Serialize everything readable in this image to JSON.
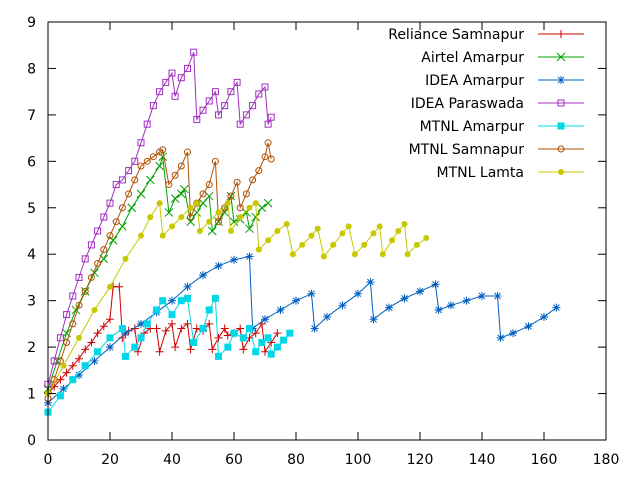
{
  "chart_data": {
    "type": "line",
    "xlim": [
      0,
      180
    ],
    "ylim": [
      0,
      9
    ],
    "x_ticks": [
      "0",
      "20",
      "40",
      "60",
      "80",
      "100",
      "120",
      "140",
      "160",
      "180"
    ],
    "y_ticks": [
      "0",
      "1",
      "2",
      "3",
      "4",
      "5",
      "6",
      "7",
      "8",
      "9"
    ],
    "grid": false,
    "legend_position": "top-right",
    "series": [
      {
        "name": "Reliance Samnapur",
        "color": "#d00000",
        "marker": "plus",
        "points": [
          [
            0,
            1.0
          ],
          [
            2,
            1.15
          ],
          [
            4,
            1.3
          ],
          [
            6,
            1.45
          ],
          [
            8,
            1.6
          ],
          [
            10,
            1.75
          ],
          [
            12,
            1.95
          ],
          [
            14,
            2.1
          ],
          [
            16,
            2.3
          ],
          [
            18,
            2.45
          ],
          [
            20,
            2.6
          ],
          [
            21,
            3.3
          ],
          [
            23,
            3.3
          ],
          [
            24,
            2.2
          ],
          [
            26,
            2.35
          ],
          [
            28,
            2.4
          ],
          [
            29,
            1.9
          ],
          [
            31,
            2.3
          ],
          [
            33,
            2.4
          ],
          [
            35,
            2.4
          ],
          [
            36,
            1.9
          ],
          [
            38,
            2.35
          ],
          [
            40,
            2.5
          ],
          [
            41,
            2.0
          ],
          [
            43,
            2.4
          ],
          [
            45,
            2.5
          ],
          [
            46,
            1.95
          ],
          [
            48,
            2.4
          ],
          [
            50,
            2.35
          ],
          [
            52,
            2.5
          ],
          [
            53,
            1.95
          ],
          [
            55,
            2.2
          ],
          [
            57,
            2.4
          ],
          [
            58,
            2.25
          ],
          [
            60,
            2.3
          ],
          [
            62,
            2.4
          ],
          [
            63,
            1.95
          ],
          [
            65,
            2.2
          ],
          [
            67,
            2.3
          ],
          [
            69,
            2.5
          ],
          [
            70,
            1.9
          ],
          [
            72,
            2.1
          ],
          [
            74,
            2.3
          ]
        ]
      },
      {
        "name": "Airtel Amarpur",
        "color": "#00a000",
        "marker": "cross",
        "points": [
          [
            0,
            1.1
          ],
          [
            3,
            1.7
          ],
          [
            6,
            2.3
          ],
          [
            9,
            2.8
          ],
          [
            12,
            3.2
          ],
          [
            15,
            3.6
          ],
          [
            18,
            3.9
          ],
          [
            21,
            4.3
          ],
          [
            24,
            4.6
          ],
          [
            27,
            5.0
          ],
          [
            30,
            5.3
          ],
          [
            33,
            5.6
          ],
          [
            36,
            5.9
          ],
          [
            37,
            6.1
          ],
          [
            39,
            4.9
          ],
          [
            41,
            5.2
          ],
          [
            43,
            5.3
          ],
          [
            44,
            5.4
          ],
          [
            46,
            4.7
          ],
          [
            48,
            4.9
          ],
          [
            50,
            5.1
          ],
          [
            52,
            5.25
          ],
          [
            53,
            4.5
          ],
          [
            55,
            4.7
          ],
          [
            57,
            4.9
          ],
          [
            59,
            5.25
          ],
          [
            60,
            4.7
          ],
          [
            62,
            4.75
          ],
          [
            64,
            4.9
          ],
          [
            65,
            4.55
          ],
          [
            67,
            4.8
          ],
          [
            69,
            5.0
          ],
          [
            71,
            5.1
          ]
        ]
      },
      {
        "name": "IDEA Amarpur",
        "color": "#0060c0",
        "marker": "star",
        "points": [
          [
            0,
            0.8
          ],
          [
            5,
            1.1
          ],
          [
            10,
            1.4
          ],
          [
            15,
            1.7
          ],
          [
            20,
            2.0
          ],
          [
            25,
            2.3
          ],
          [
            30,
            2.5
          ],
          [
            35,
            2.75
          ],
          [
            40,
            3.0
          ],
          [
            45,
            3.3
          ],
          [
            50,
            3.55
          ],
          [
            55,
            3.75
          ],
          [
            60,
            3.88
          ],
          [
            65,
            3.95
          ],
          [
            66,
            2.4
          ],
          [
            70,
            2.6
          ],
          [
            75,
            2.8
          ],
          [
            80,
            3.0
          ],
          [
            85,
            3.15
          ],
          [
            86,
            2.4
          ],
          [
            90,
            2.65
          ],
          [
            95,
            2.9
          ],
          [
            100,
            3.15
          ],
          [
            104,
            3.4
          ],
          [
            105,
            2.6
          ],
          [
            110,
            2.85
          ],
          [
            115,
            3.05
          ],
          [
            120,
            3.2
          ],
          [
            125,
            3.35
          ],
          [
            126,
            2.8
          ],
          [
            130,
            2.9
          ],
          [
            135,
            3.0
          ],
          [
            140,
            3.1
          ],
          [
            145,
            3.1
          ],
          [
            146,
            2.2
          ],
          [
            150,
            2.3
          ],
          [
            155,
            2.45
          ],
          [
            160,
            2.65
          ],
          [
            164,
            2.85
          ]
        ]
      },
      {
        "name": "IDEA Paraswada",
        "color": "#a030c0",
        "marker": "square-open",
        "points": [
          [
            0,
            1.2
          ],
          [
            2,
            1.7
          ],
          [
            4,
            2.2
          ],
          [
            6,
            2.7
          ],
          [
            8,
            3.1
          ],
          [
            10,
            3.5
          ],
          [
            12,
            3.9
          ],
          [
            14,
            4.2
          ],
          [
            16,
            4.5
          ],
          [
            18,
            4.8
          ],
          [
            20,
            5.1
          ],
          [
            22,
            5.5
          ],
          [
            24,
            5.6
          ],
          [
            26,
            5.8
          ],
          [
            28,
            6.0
          ],
          [
            30,
            6.4
          ],
          [
            32,
            6.8
          ],
          [
            34,
            7.2
          ],
          [
            36,
            7.5
          ],
          [
            38,
            7.7
          ],
          [
            40,
            7.9
          ],
          [
            41,
            7.4
          ],
          [
            43,
            7.8
          ],
          [
            45,
            8.0
          ],
          [
            47,
            8.35
          ],
          [
            48,
            6.9
          ],
          [
            50,
            7.1
          ],
          [
            52,
            7.3
          ],
          [
            54,
            7.5
          ],
          [
            55,
            7.0
          ],
          [
            57,
            7.2
          ],
          [
            59,
            7.5
          ],
          [
            61,
            7.7
          ],
          [
            62,
            6.8
          ],
          [
            64,
            7.0
          ],
          [
            66,
            7.2
          ],
          [
            68,
            7.45
          ],
          [
            70,
            7.6
          ],
          [
            71,
            6.8
          ],
          [
            72,
            6.95
          ]
        ]
      },
      {
        "name": "MTNL Amarpur",
        "color": "#00d8e8",
        "marker": "square-filled",
        "points": [
          [
            0,
            0.6
          ],
          [
            4,
            0.95
          ],
          [
            8,
            1.3
          ],
          [
            12,
            1.6
          ],
          [
            16,
            1.9
          ],
          [
            20,
            2.2
          ],
          [
            24,
            2.4
          ],
          [
            25,
            1.8
          ],
          [
            28,
            2.0
          ],
          [
            30,
            2.2
          ],
          [
            32,
            2.5
          ],
          [
            35,
            2.8
          ],
          [
            37,
            3.0
          ],
          [
            40,
            2.7
          ],
          [
            43,
            3.0
          ],
          [
            45,
            3.05
          ],
          [
            47,
            2.1
          ],
          [
            50,
            2.4
          ],
          [
            52,
            2.8
          ],
          [
            54,
            3.05
          ],
          [
            55,
            1.8
          ],
          [
            58,
            2.0
          ],
          [
            60,
            2.3
          ],
          [
            63,
            2.2
          ],
          [
            65,
            2.4
          ],
          [
            67,
            1.9
          ],
          [
            69,
            2.1
          ],
          [
            71,
            2.2
          ],
          [
            72,
            1.85
          ],
          [
            74,
            2.0
          ],
          [
            76,
            2.15
          ],
          [
            78,
            2.3
          ]
        ]
      },
      {
        "name": "MTNL Samnapur",
        "color": "#b05000",
        "marker": "circle-open",
        "points": [
          [
            0,
            0.9
          ],
          [
            2,
            1.3
          ],
          [
            4,
            1.7
          ],
          [
            6,
            2.1
          ],
          [
            8,
            2.5
          ],
          [
            10,
            2.9
          ],
          [
            12,
            3.2
          ],
          [
            14,
            3.5
          ],
          [
            16,
            3.8
          ],
          [
            18,
            4.1
          ],
          [
            20,
            4.4
          ],
          [
            22,
            4.7
          ],
          [
            24,
            5.0
          ],
          [
            26,
            5.3
          ],
          [
            28,
            5.6
          ],
          [
            30,
            5.9
          ],
          [
            32,
            6.0
          ],
          [
            34,
            6.1
          ],
          [
            36,
            6.2
          ],
          [
            37,
            6.25
          ],
          [
            39,
            5.5
          ],
          [
            41,
            5.7
          ],
          [
            43,
            5.9
          ],
          [
            45,
            6.2
          ],
          [
            46,
            4.8
          ],
          [
            48,
            5.1
          ],
          [
            50,
            5.3
          ],
          [
            52,
            5.5
          ],
          [
            54,
            6.0
          ],
          [
            55,
            4.7
          ],
          [
            57,
            5.0
          ],
          [
            59,
            5.25
          ],
          [
            61,
            5.55
          ],
          [
            62,
            5.0
          ],
          [
            64,
            5.3
          ],
          [
            66,
            5.6
          ],
          [
            68,
            5.8
          ],
          [
            70,
            6.1
          ],
          [
            71,
            6.4
          ],
          [
            72,
            6.05
          ]
        ]
      },
      {
        "name": "MTNL Lamta",
        "color": "#c8c800",
        "marker": "circle-filled",
        "points": [
          [
            0,
            1.0
          ],
          [
            5,
            1.6
          ],
          [
            10,
            2.2
          ],
          [
            15,
            2.8
          ],
          [
            20,
            3.3
          ],
          [
            25,
            3.9
          ],
          [
            30,
            4.4
          ],
          [
            33,
            4.8
          ],
          [
            36,
            5.1
          ],
          [
            37,
            4.4
          ],
          [
            40,
            4.6
          ],
          [
            43,
            4.8
          ],
          [
            46,
            5.0
          ],
          [
            48,
            5.1
          ],
          [
            49,
            4.5
          ],
          [
            52,
            4.7
          ],
          [
            55,
            4.9
          ],
          [
            58,
            5.1
          ],
          [
            59,
            4.5
          ],
          [
            62,
            4.8
          ],
          [
            65,
            5.0
          ],
          [
            67,
            5.1
          ],
          [
            68,
            4.1
          ],
          [
            71,
            4.3
          ],
          [
            74,
            4.5
          ],
          [
            77,
            4.65
          ],
          [
            79,
            4.0
          ],
          [
            82,
            4.2
          ],
          [
            85,
            4.4
          ],
          [
            87,
            4.55
          ],
          [
            89,
            3.95
          ],
          [
            92,
            4.2
          ],
          [
            95,
            4.45
          ],
          [
            97,
            4.6
          ],
          [
            99,
            4.0
          ],
          [
            102,
            4.2
          ],
          [
            105,
            4.45
          ],
          [
            107,
            4.6
          ],
          [
            108,
            4.0
          ],
          [
            111,
            4.3
          ],
          [
            113,
            4.5
          ],
          [
            115,
            4.65
          ],
          [
            116,
            4.0
          ],
          [
            119,
            4.2
          ],
          [
            122,
            4.35
          ]
        ]
      }
    ]
  }
}
